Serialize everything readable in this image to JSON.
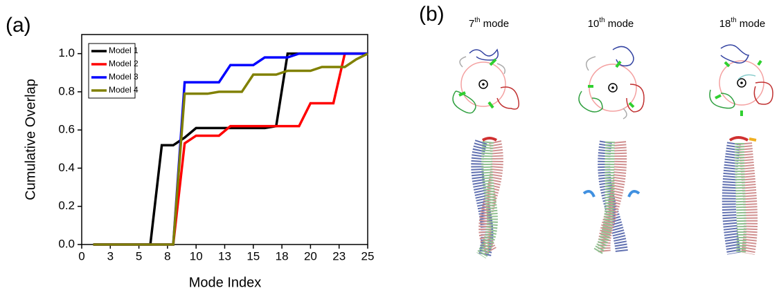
{
  "panel_a_label": "(a)",
  "chart_data": {
    "type": "line",
    "xlabel": "Mode Index",
    "ylabel": "Cumulative Overlap",
    "x": [
      1,
      2,
      3,
      4,
      5,
      6,
      7,
      8,
      9,
      10,
      11,
      12,
      13,
      14,
      15,
      16,
      17,
      18,
      19,
      20,
      21,
      22,
      23,
      24,
      25
    ],
    "series": [
      {
        "name": "Model 1",
        "color": "#000000",
        "values": [
          0,
          0,
          0,
          0,
          0,
          0,
          0.52,
          0.52,
          0.56,
          0.61,
          0.61,
          0.61,
          0.61,
          0.61,
          0.61,
          0.61,
          0.62,
          1.0,
          1.0,
          1.0,
          1.0,
          1.0,
          1.0,
          1.0,
          1.0
        ]
      },
      {
        "name": "Model 2",
        "color": "#ff0000",
        "values": [
          0,
          0,
          0,
          0,
          0,
          0,
          0,
          0,
          0.53,
          0.57,
          0.57,
          0.57,
          0.62,
          0.62,
          0.62,
          0.62,
          0.62,
          0.62,
          0.62,
          0.74,
          0.74,
          0.74,
          1.0,
          1.0,
          1.0
        ]
      },
      {
        "name": "Model 3",
        "color": "#0000ff",
        "values": [
          0,
          0,
          0,
          0,
          0,
          0,
          0,
          0,
          0.85,
          0.85,
          0.85,
          0.85,
          0.94,
          0.94,
          0.94,
          0.98,
          0.98,
          0.98,
          1.0,
          1.0,
          1.0,
          1.0,
          1.0,
          1.0,
          1.0
        ]
      },
      {
        "name": "Model 4",
        "color": "#808000",
        "values": [
          0,
          0,
          0,
          0,
          0,
          0,
          0,
          0,
          0.79,
          0.79,
          0.79,
          0.8,
          0.8,
          0.8,
          0.89,
          0.89,
          0.89,
          0.91,
          0.91,
          0.91,
          0.93,
          0.93,
          0.93,
          0.97,
          1.0
        ]
      }
    ],
    "xlim": [
      0,
      25
    ],
    "ylim": [
      0,
      1.1
    ],
    "xticks": [
      0,
      {
        "value": 2.5,
        "label": "3"
      },
      5,
      {
        "value": 7.5,
        "label": "8"
      },
      10,
      {
        "value": 12.5,
        "label": "13"
      },
      15,
      {
        "value": 17.5,
        "label": "18"
      },
      20,
      {
        "value": 22.5,
        "label": "23"
      },
      25
    ],
    "yticks": [
      {
        "value": 0,
        "label": "0.0"
      },
      0.2,
      0.4,
      0.6,
      0.8,
      {
        "value": 1,
        "label": "1.0"
      }
    ],
    "legend": "upper left",
    "grid": false
  },
  "panel_b": {
    "label": "(b)",
    "modes": [
      {
        "number": "7",
        "sup": "th",
        "text": "mode"
      },
      {
        "number": "10",
        "sup": "th",
        "text": "mode"
      },
      {
        "number": "18",
        "sup": "th",
        "text": "mode"
      }
    ]
  }
}
